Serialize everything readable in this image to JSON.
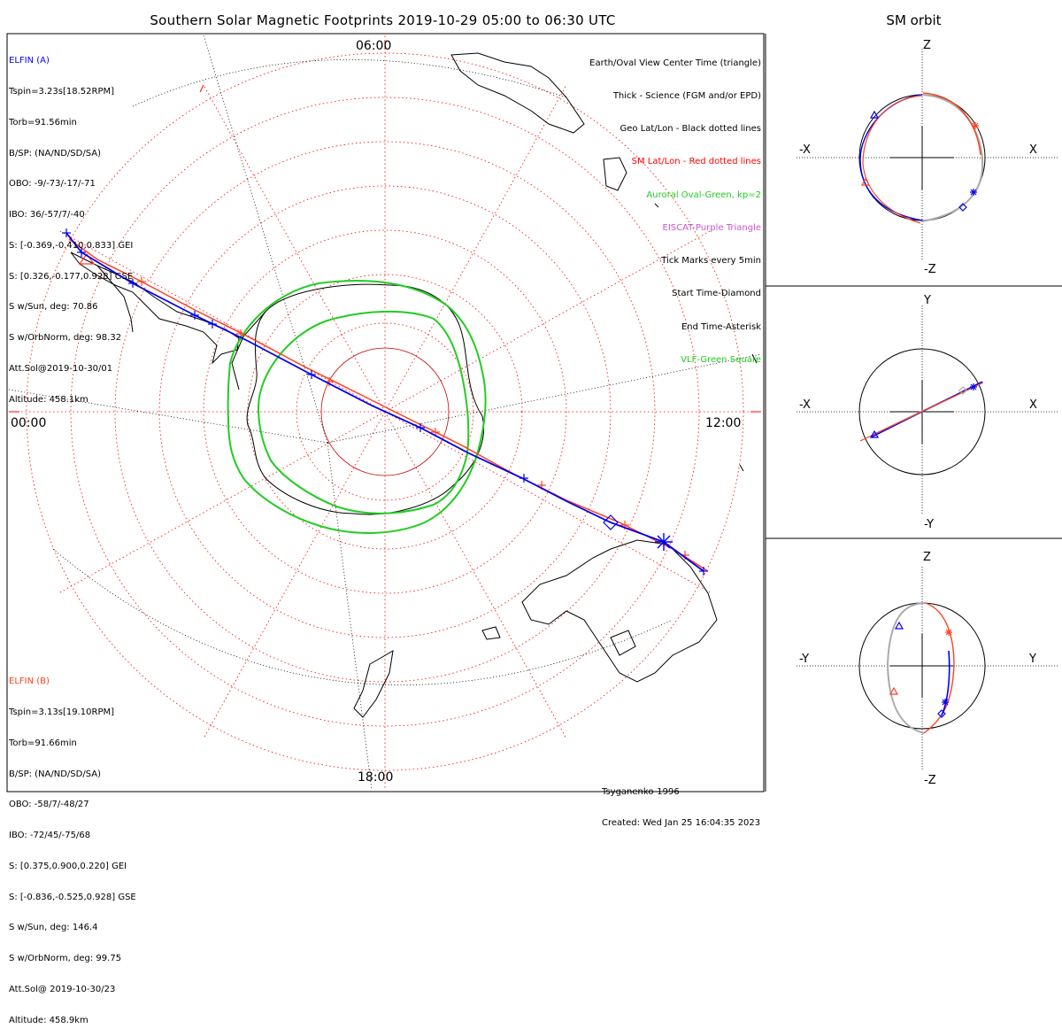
{
  "title": "Southern Solar Magnetic Footprints 2019-10-29 05:00 to 06:30 UTC",
  "orbit_title": "SM orbit",
  "hour_labels": {
    "top": "06:00",
    "left": "00:00",
    "right": "12:00",
    "bottom": "18:00"
  },
  "elfin_a": {
    "name": "ELFIN (A)",
    "color": "#0000ff",
    "lines": [
      "Tspin=3.23s[18.52RPM]",
      "Torb=91.56min",
      "B/SP: (NA/ND/SD/SA)",
      "OBO: -9/-73/-17/-71",
      "IBO: 36/-57/7/-40",
      "S: [-0.369,-0.410,0.833] GEI",
      "S: [0.326,-0.177,0.928] GSE",
      "S w/Sun, deg: 70.86",
      "S w/OrbNorm, deg: 98.32",
      "Att.Sol@2019-10-30/01",
      "Altitude: 458.1km"
    ]
  },
  "elfin_b": {
    "name": "ELFIN (B)",
    "color": "#ff4020",
    "lines": [
      "Tspin=3.13s[19.10RPM]",
      "Torb=91.66min",
      "B/SP: (NA/ND/SD/SA)",
      "OBO: -58/7/-48/27",
      "IBO: -72/45/-75/68",
      "S: [0.375,0.900,0.220] GEI",
      "S: [-0.836,-0.525,0.928] GSE",
      "S w/Sun, deg: 146.4",
      "S w/OrbNorm, deg: 99.75",
      "Att.Sol@ 2019-10-30/23",
      "Altitude: 458.9km"
    ]
  },
  "legend": [
    {
      "text": "Earth/Oval View Center Time (triangle)",
      "color": "#000000"
    },
    {
      "text": "Thick - Science (FGM and/or EPD)",
      "color": "#000000"
    },
    {
      "text": "Geo Lat/Lon - Black dotted lines",
      "color": "#000000"
    },
    {
      "text": "SM Lat/Lon - Red dotted lines",
      "color": "#ff0000"
    },
    {
      "text": "Auroral Oval-Green, kp=2",
      "color": "#22cc22"
    },
    {
      "text": "EISCAT-Purple Triangle",
      "color": "#cc55cc"
    },
    {
      "text": "Tick Marks every 5min",
      "color": "#000000"
    },
    {
      "text": "Start Time-Diamond",
      "color": "#000000"
    },
    {
      "text": "End Time-Asterisk",
      "color": "#000000"
    },
    {
      "text": "VLF-Green Square",
      "color": "#22cc22"
    }
  ],
  "credits": [
    "Tsyganenko-1996",
    "Created: Wed Jan 25 16:04:35 2023"
  ],
  "panels": [
    {
      "name": "xz",
      "labels": {
        "top": "Z",
        "bottom": "-Z",
        "left": "-X",
        "right": "X"
      }
    },
    {
      "name": "xy",
      "labels": {
        "top": "Y",
        "bottom": "-Y",
        "left": "-X",
        "right": "X"
      }
    },
    {
      "name": "yz",
      "labels": {
        "top": "Z",
        "bottom": "-Z",
        "left": "-Y",
        "right": "Y"
      }
    }
  ]
}
